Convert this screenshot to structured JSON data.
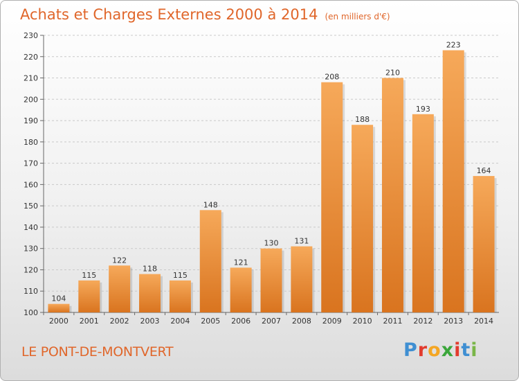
{
  "title": "Achats et Charges Externes 2000 à 2014",
  "unit_label": "(en milliers d'€)",
  "commune": "LE PONT-DE-MONTVERT",
  "brand": {
    "letters": [
      "P",
      "r",
      "o",
      "x",
      "i",
      "t",
      "i"
    ],
    "colors": [
      "#3f8fd2",
      "#e23b2e",
      "#f4a623",
      "#3aa63a",
      "#e23b2e",
      "#3f8fd2",
      "#7ab648"
    ]
  },
  "colors": {
    "bar_light": "#f6a95a",
    "bar_dark": "#d9741f",
    "title": "#e0662a"
  },
  "chart_data": {
    "type": "bar",
    "categories": [
      "2000",
      "2001",
      "2002",
      "2003",
      "2004",
      "2005",
      "2006",
      "2007",
      "2008",
      "2009",
      "2010",
      "2011",
      "2012",
      "2013",
      "2014"
    ],
    "values": [
      104,
      115,
      122,
      118,
      115,
      148,
      121,
      130,
      131,
      208,
      188,
      210,
      193,
      223,
      164
    ],
    "ylim": [
      100,
      230
    ],
    "yticks": [
      100,
      110,
      120,
      130,
      140,
      150,
      160,
      170,
      180,
      190,
      200,
      210,
      220,
      230
    ],
    "grid": "horizontal dashed"
  }
}
